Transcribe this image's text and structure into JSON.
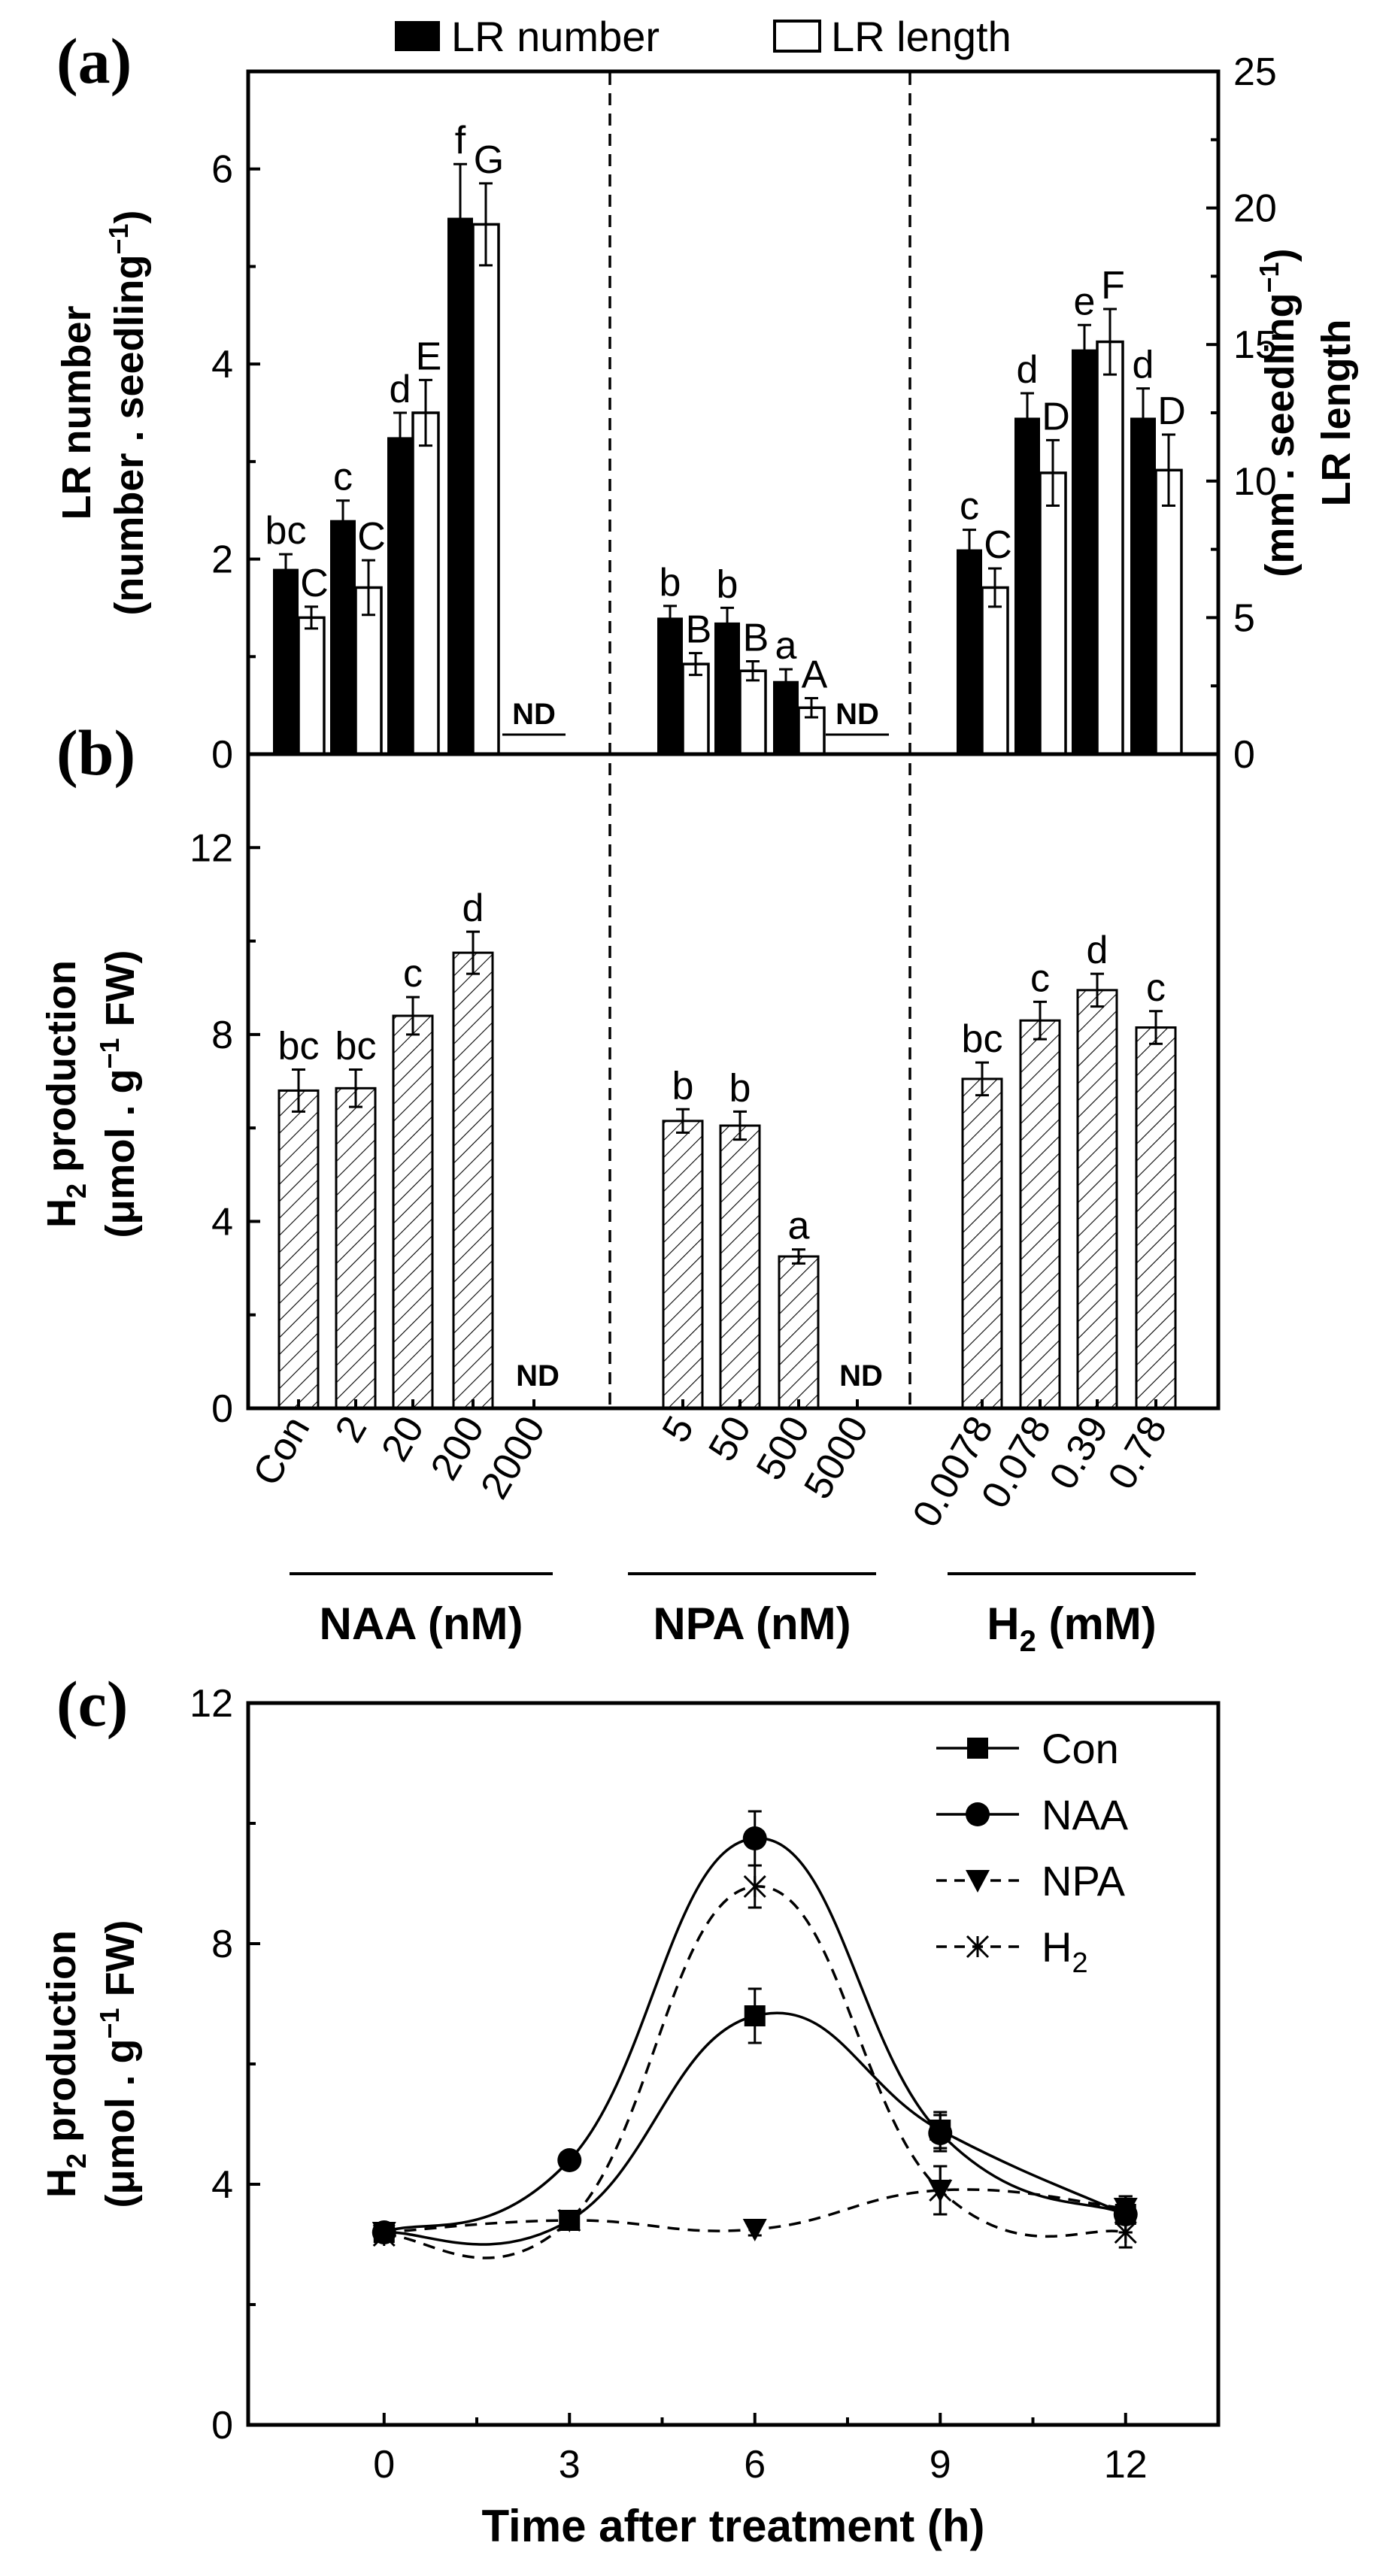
{
  "chart_data": [
    {
      "panel": "(a)",
      "type": "bar",
      "left_axis": {
        "label_line1": "LR number",
        "label_line2": "(number . seedling",
        "label_sup": "−1",
        "label_tail": ")",
        "ylim": [
          0,
          7
        ],
        "ticks": [
          "0",
          "2",
          "4",
          "6"
        ]
      },
      "right_axis": {
        "label_line1": "LR length",
        "label_line2": "(mm . seedling",
        "label_sup": "−1",
        "label_tail": ")",
        "ylim": [
          0,
          25
        ],
        "ticks": [
          "0",
          "5",
          "10",
          "15",
          "20",
          "25"
        ]
      },
      "legend": {
        "number": "LR number",
        "length": "LR length",
        "position": "top"
      },
      "categories": [
        "Con",
        "2",
        "20",
        "200",
        "2000",
        "5",
        "50",
        "500",
        "5000",
        "0.0078",
        "0.078",
        "0.39",
        "0.78"
      ],
      "groups": [
        {
          "name": "NAA (nM)",
          "start": 0,
          "end": 4
        },
        {
          "name": "NPA (nM)",
          "start": 5,
          "end": 8
        },
        {
          "name": "H2 (mM)",
          "start": 9,
          "end": 12
        }
      ],
      "series": [
        {
          "name": "LR number",
          "values": [
            1.9,
            2.4,
            3.25,
            5.5,
            null,
            1.4,
            1.35,
            0.75,
            null,
            2.1,
            3.45,
            4.15,
            3.45
          ],
          "errors": [
            0.15,
            0.2,
            0.25,
            0.55,
            null,
            0.12,
            0.15,
            0.12,
            null,
            0.2,
            0.25,
            0.25,
            0.3
          ],
          "letters": [
            "bc",
            "c",
            "d",
            "f",
            "",
            "b",
            "b",
            "a",
            "",
            "c",
            "d",
            "e",
            "d"
          ]
        },
        {
          "name": "LR length",
          "values": [
            5.0,
            6.1,
            12.5,
            19.4,
            null,
            3.3,
            3.05,
            1.7,
            null,
            6.1,
            10.3,
            15.1,
            10.4
          ],
          "errors": [
            0.4,
            1.0,
            1.2,
            1.5,
            null,
            0.4,
            0.35,
            0.35,
            null,
            0.7,
            1.2,
            1.2,
            1.3
          ],
          "letters": [
            "C",
            "C",
            "E",
            "G",
            "",
            "B",
            "B",
            "A",
            "",
            "C",
            "D",
            "F",
            "D"
          ]
        }
      ],
      "nd_label": "ND"
    },
    {
      "panel": "(b)",
      "type": "bar",
      "y_axis": {
        "label_line1_main": "H",
        "label_line1_sub": "2",
        "label_line1_tail": " production",
        "label_line2": "(μmol . g",
        "label_sup": "−1",
        "label_tail": " FW)",
        "ylim": [
          0,
          14
        ],
        "ticks": [
          "0",
          "4",
          "8",
          "12"
        ]
      },
      "categories": [
        "Con",
        "2",
        "20",
        "200",
        "2000",
        "5",
        "50",
        "500",
        "5000",
        "0.0078",
        "0.078",
        "0.39",
        "0.78"
      ],
      "values": [
        6.8,
        6.85,
        8.4,
        9.75,
        null,
        6.15,
        6.05,
        3.25,
        null,
        7.05,
        8.3,
        8.95,
        8.15
      ],
      "errors": [
        0.45,
        0.4,
        0.4,
        0.45,
        null,
        0.25,
        0.3,
        0.15,
        null,
        0.35,
        0.4,
        0.35,
        0.35
      ],
      "letters": [
        "bc",
        "bc",
        "c",
        "d",
        "",
        "b",
        "b",
        "a",
        "",
        "bc",
        "c",
        "d",
        "c"
      ],
      "group_labels": {
        "naa": "NAA (nM)",
        "npa": "NPA (nM)",
        "h2_main": "H",
        "h2_sub": "2",
        "h2_tail": " (mM)"
      },
      "nd_label": "ND"
    },
    {
      "panel": "(c)",
      "type": "line",
      "x_axis": {
        "label": "Time after treatment (h)",
        "xlim": [
          -2.2,
          13.5
        ],
        "ticks": [
          "0",
          "3",
          "6",
          "9",
          "12"
        ]
      },
      "y_axis": {
        "label_line1_main": "H",
        "label_line1_sub": "2",
        "label_line1_tail": " production",
        "label_line2": "(μmol . g",
        "label_sup": "−1",
        "label_tail": " FW)",
        "ylim": [
          0,
          12
        ],
        "ticks": [
          "0",
          "4",
          "8",
          "12"
        ]
      },
      "x": [
        0,
        3,
        6,
        9,
        12
      ],
      "legend": {
        "position": "top-right"
      },
      "series": [
        {
          "name": "Con",
          "marker": "square",
          "dashed": false,
          "values": [
            3.2,
            3.4,
            6.8,
            4.9,
            3.5
          ],
          "errors": [
            0.1,
            0.1,
            0.45,
            0.3,
            0.3
          ]
        },
        {
          "name": "NAA",
          "marker": "circle",
          "dashed": false,
          "values": [
            3.2,
            4.4,
            9.75,
            4.85,
            3.5
          ],
          "errors": [
            0.1,
            0.1,
            0.45,
            0.3,
            0.3
          ]
        },
        {
          "name": "NPA",
          "marker": "triangle-down",
          "dashed": true,
          "values": [
            3.2,
            3.4,
            3.25,
            3.9,
            3.6
          ],
          "errors": [
            0.1,
            0.1,
            0.1,
            0.4,
            0.2
          ]
        },
        {
          "name": "H",
          "name_sub": "2",
          "marker": "x",
          "dashed": true,
          "values": [
            3.15,
            3.4,
            8.95,
            3.9,
            3.2
          ],
          "errors": [
            0.1,
            0.1,
            0.35,
            0.4,
            0.25
          ]
        }
      ]
    }
  ]
}
